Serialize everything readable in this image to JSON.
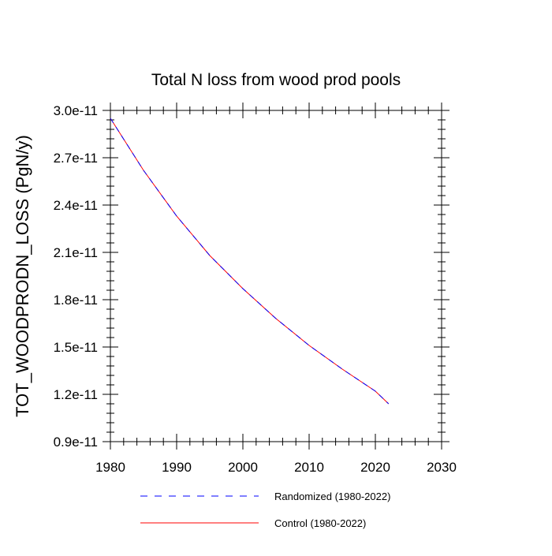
{
  "chart_data": {
    "type": "line",
    "title": "Total N loss from wood prod pools",
    "xlabel": "",
    "ylabel": "TOT_WOODPRODN_LOSS  (PgN/y)",
    "xlim": [
      1980,
      2030
    ],
    "ylim": [
      9e-12,
      3e-11
    ],
    "xticks": [
      1980,
      1990,
      2000,
      2010,
      2020,
      2030
    ],
    "xtick_labels": [
      "1980",
      "1990",
      "2000",
      "2010",
      "2020",
      "2030"
    ],
    "yticks": [
      9e-12,
      1.2e-11,
      1.5e-11,
      1.8e-11,
      2.1e-11,
      2.4e-11,
      2.7e-11,
      3e-11
    ],
    "ytick_labels": [
      "0.9e-11",
      "1.2e-11",
      "1.5e-11",
      "1.8e-11",
      "2.1e-11",
      "2.4e-11",
      "2.7e-11",
      "3.0e-11"
    ],
    "grid": false,
    "legend_position": "bottom",
    "x": [
      1980,
      1985,
      1990,
      1995,
      2000,
      2005,
      2010,
      2015,
      2020,
      2022
    ],
    "series": [
      {
        "name": "Randomized (1980-2022)",
        "color": "#0000ff",
        "dash": "dashed",
        "values": [
          2.95e-11,
          2.62e-11,
          2.33e-11,
          2.08e-11,
          1.87e-11,
          1.68e-11,
          1.51e-11,
          1.36e-11,
          1.22e-11,
          1.14e-11
        ]
      },
      {
        "name": "Control (1980-2022)",
        "color": "#ff0000",
        "dash": "solid",
        "values": [
          2.95e-11,
          2.62e-11,
          2.33e-11,
          2.08e-11,
          1.87e-11,
          1.68e-11,
          1.51e-11,
          1.36e-11,
          1.22e-11,
          1.14e-11
        ]
      }
    ]
  }
}
